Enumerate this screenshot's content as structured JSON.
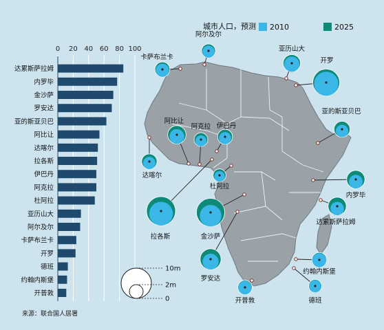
{
  "chart_data": {
    "type": "bar",
    "title": "城市人口，预测",
    "legend": [
      {
        "label": "2010",
        "color": "#3ab7e6"
      },
      {
        "label": "2025",
        "color": "#0d8a78"
      }
    ],
    "bar_color": "#1f4a6e",
    "xlim": [
      0,
      100
    ],
    "xticks": [
      0,
      20,
      40,
      60,
      80,
      100
    ],
    "categories": [
      "达累斯萨拉姆",
      "内罗毕",
      "金沙萨",
      "罗安达",
      "亚的斯亚贝巴",
      "阿比让",
      "达喀尔",
      "拉各斯",
      "伊巴丹",
      "阿克拉",
      "杜阿拉",
      "亚历山大",
      "阿尔及尔",
      "卡萨布兰卡",
      "开罗",
      "德班",
      "约翰内斯堡",
      "开普敦"
    ],
    "values": [
      85,
      77,
      72,
      70,
      63,
      54,
      52,
      51,
      50,
      50,
      48,
      30,
      29,
      24,
      23,
      13,
      12,
      11
    ],
    "size_legend": {
      "labels": [
        "10m",
        "2m",
        "0"
      ]
    },
    "map_cities": [
      {
        "name": "阿尔及尔",
        "pop2010": 2.8,
        "pop2025": 3.6
      },
      {
        "name": "卡萨布兰卡",
        "pop2010": 3.3,
        "pop2025": 4.2
      },
      {
        "name": "亚历山大",
        "pop2010": 4.4,
        "pop2025": 5.6
      },
      {
        "name": "开罗",
        "pop2010": 11.0,
        "pop2025": 13.5
      },
      {
        "name": "阿比让",
        "pop2010": 4.1,
        "pop2025": 6.3
      },
      {
        "name": "阿克拉",
        "pop2010": 2.3,
        "pop2025": 3.5
      },
      {
        "name": "伊巴丹",
        "pop2010": 2.8,
        "pop2025": 4.2
      },
      {
        "name": "亚的斯亚贝巴",
        "pop2010": 2.9,
        "pop2025": 4.8
      },
      {
        "name": "达喀尔",
        "pop2010": 2.9,
        "pop2025": 4.4
      },
      {
        "name": "杜阿拉",
        "pop2010": 2.1,
        "pop2025": 3.1
      },
      {
        "name": "内罗毕",
        "pop2010": 3.5,
        "pop2025": 6.2
      },
      {
        "name": "拉各斯",
        "pop2010": 10.6,
        "pop2025": 15.8
      },
      {
        "name": "金沙萨",
        "pop2010": 8.8,
        "pop2025": 15.0
      },
      {
        "name": "达累斯萨拉姆",
        "pop2010": 3.4,
        "pop2025": 6.2
      },
      {
        "name": "罗安达",
        "pop2010": 4.8,
        "pop2025": 8.2
      },
      {
        "name": "约翰内斯堡",
        "pop2010": 3.7,
        "pop2025": 4.1
      },
      {
        "name": "开普敦",
        "pop2010": 3.4,
        "pop2025": 3.8
      },
      {
        "name": "德班",
        "pop2010": 2.9,
        "pop2025": 3.2
      }
    ]
  },
  "source": "来源：联合国人居署"
}
